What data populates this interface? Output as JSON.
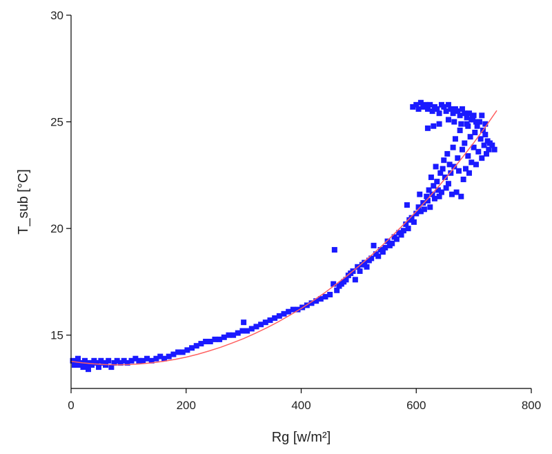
{
  "chart_data": {
    "type": "scatter",
    "title": "",
    "xlabel": "Rg [w/m²]",
    "ylabel": "T_sub [°C]",
    "xlim": [
      0,
      800
    ],
    "ylim": [
      12.5,
      30
    ],
    "xticks": [
      0,
      200,
      400,
      600,
      800
    ],
    "xtick_labels": [
      "0",
      "200",
      "400",
      "600",
      "800"
    ],
    "yticks": [
      15,
      20,
      25,
      30
    ],
    "ytick_labels": [
      "15",
      "20",
      "25",
      "30"
    ],
    "grid": false,
    "legend": "none",
    "series": [
      {
        "kind": "scatter",
        "color": "#1a1aff",
        "points": [
          [
            3,
            13.8
          ],
          [
            6,
            13.6
          ],
          [
            9,
            13.7
          ],
          [
            12,
            13.9
          ],
          [
            15,
            13.6
          ],
          [
            18,
            13.7
          ],
          [
            21,
            13.5
          ],
          [
            24,
            13.8
          ],
          [
            27,
            13.6
          ],
          [
            30,
            13.4
          ],
          [
            33,
            13.7
          ],
          [
            36,
            13.6
          ],
          [
            40,
            13.8
          ],
          [
            44,
            13.7
          ],
          [
            48,
            13.5
          ],
          [
            52,
            13.8
          ],
          [
            56,
            13.7
          ],
          [
            60,
            13.6
          ],
          [
            65,
            13.8
          ],
          [
            70,
            13.5
          ],
          [
            75,
            13.7
          ],
          [
            80,
            13.8
          ],
          [
            86,
            13.7
          ],
          [
            92,
            13.8
          ],
          [
            98,
            13.7
          ],
          [
            105,
            13.8
          ],
          [
            112,
            13.9
          ],
          [
            118,
            13.8
          ],
          [
            125,
            13.8
          ],
          [
            132,
            13.9
          ],
          [
            140,
            13.8
          ],
          [
            148,
            13.9
          ],
          [
            155,
            14.0
          ],
          [
            162,
            13.9
          ],
          [
            170,
            14.0
          ],
          [
            178,
            14.1
          ],
          [
            186,
            14.2
          ],
          [
            194,
            14.2
          ],
          [
            202,
            14.3
          ],
          [
            210,
            14.4
          ],
          [
            218,
            14.5
          ],
          [
            226,
            14.6
          ],
          [
            234,
            14.7
          ],
          [
            242,
            14.7
          ],
          [
            250,
            14.8
          ],
          [
            258,
            14.8
          ],
          [
            266,
            14.9
          ],
          [
            274,
            15.0
          ],
          [
            282,
            15.0
          ],
          [
            290,
            15.1
          ],
          [
            298,
            15.2
          ],
          [
            300,
            15.6
          ],
          [
            306,
            15.2
          ],
          [
            314,
            15.3
          ],
          [
            322,
            15.4
          ],
          [
            330,
            15.5
          ],
          [
            338,
            15.6
          ],
          [
            346,
            15.7
          ],
          [
            354,
            15.8
          ],
          [
            362,
            15.9
          ],
          [
            370,
            16.0
          ],
          [
            378,
            16.1
          ],
          [
            386,
            16.2
          ],
          [
            394,
            16.2
          ],
          [
            402,
            16.3
          ],
          [
            410,
            16.4
          ],
          [
            418,
            16.5
          ],
          [
            426,
            16.6
          ],
          [
            434,
            16.7
          ],
          [
            442,
            16.8
          ],
          [
            450,
            16.9
          ],
          [
            456,
            17.4
          ],
          [
            458,
            19.0
          ],
          [
            462,
            17.1
          ],
          [
            466,
            17.3
          ],
          [
            470,
            17.4
          ],
          [
            474,
            17.5
          ],
          [
            478,
            17.6
          ],
          [
            482,
            17.8
          ],
          [
            486,
            17.9
          ],
          [
            490,
            18.0
          ],
          [
            494,
            17.6
          ],
          [
            498,
            18.2
          ],
          [
            502,
            18.0
          ],
          [
            506,
            18.3
          ],
          [
            510,
            18.4
          ],
          [
            514,
            18.2
          ],
          [
            518,
            18.5
          ],
          [
            522,
            18.6
          ],
          [
            526,
            19.2
          ],
          [
            530,
            18.8
          ],
          [
            534,
            18.7
          ],
          [
            538,
            19.0
          ],
          [
            542,
            18.9
          ],
          [
            546,
            19.1
          ],
          [
            550,
            19.4
          ],
          [
            554,
            19.2
          ],
          [
            558,
            19.3
          ],
          [
            562,
            19.6
          ],
          [
            566,
            19.5
          ],
          [
            570,
            19.8
          ],
          [
            574,
            19.7
          ],
          [
            578,
            19.9
          ],
          [
            582,
            20.2
          ],
          [
            584,
            21.1
          ],
          [
            586,
            20.0
          ],
          [
            588,
            20.4
          ],
          [
            592,
            20.5
          ],
          [
            596,
            20.3
          ],
          [
            600,
            20.7
          ],
          [
            604,
            21.0
          ],
          [
            606,
            21.6
          ],
          [
            608,
            20.8
          ],
          [
            612,
            21.2
          ],
          [
            614,
            20.9
          ],
          [
            618,
            21.5
          ],
          [
            620,
            21.3
          ],
          [
            622,
            21.8
          ],
          [
            624,
            21.0
          ],
          [
            626,
            22.4
          ],
          [
            628,
            21.6
          ],
          [
            630,
            22.0
          ],
          [
            632,
            21.4
          ],
          [
            634,
            22.9
          ],
          [
            636,
            22.2
          ],
          [
            638,
            21.8
          ],
          [
            640,
            21.5
          ],
          [
            642,
            22.6
          ],
          [
            644,
            21.7
          ],
          [
            646,
            22.8
          ],
          [
            648,
            23.2
          ],
          [
            650,
            22.4
          ],
          [
            652,
            21.9
          ],
          [
            654,
            23.5
          ],
          [
            656,
            22.1
          ],
          [
            658,
            23.0
          ],
          [
            660,
            22.6
          ],
          [
            662,
            21.6
          ],
          [
            664,
            23.8
          ],
          [
            666,
            22.9
          ],
          [
            668,
            24.2
          ],
          [
            670,
            21.7
          ],
          [
            672,
            23.3
          ],
          [
            674,
            22.7
          ],
          [
            676,
            24.6
          ],
          [
            678,
            21.5
          ],
          [
            680,
            23.7
          ],
          [
            682,
            22.3
          ],
          [
            684,
            24.0
          ],
          [
            686,
            22.8
          ],
          [
            688,
            24.9
          ],
          [
            690,
            23.4
          ],
          [
            692,
            22.6
          ],
          [
            694,
            24.3
          ],
          [
            696,
            23.1
          ],
          [
            698,
            25.2
          ],
          [
            700,
            23.8
          ],
          [
            702,
            24.5
          ],
          [
            704,
            23.0
          ],
          [
            706,
            24.8
          ],
          [
            708,
            23.6
          ],
          [
            710,
            25.0
          ],
          [
            712,
            24.2
          ],
          [
            714,
            23.3
          ],
          [
            716,
            24.6
          ],
          [
            718,
            23.9
          ],
          [
            720,
            24.4
          ],
          [
            722,
            23.5
          ],
          [
            724,
            24.1
          ],
          [
            726,
            23.7
          ],
          [
            728,
            24.0
          ],
          [
            732,
            23.9
          ],
          [
            736,
            23.7
          ],
          [
            714,
            25.3
          ],
          [
            720,
            24.9
          ],
          [
            600,
            25.8
          ],
          [
            604,
            25.6
          ],
          [
            608,
            25.9
          ],
          [
            612,
            25.7
          ],
          [
            616,
            25.8
          ],
          [
            620,
            25.6
          ],
          [
            624,
            25.8
          ],
          [
            628,
            25.5
          ],
          [
            632,
            25.7
          ],
          [
            636,
            25.6
          ],
          [
            640,
            25.4
          ],
          [
            644,
            25.8
          ],
          [
            648,
            25.7
          ],
          [
            652,
            25.5
          ],
          [
            656,
            25.8
          ],
          [
            660,
            25.6
          ],
          [
            664,
            25.4
          ],
          [
            668,
            25.6
          ],
          [
            672,
            25.5
          ],
          [
            676,
            25.3
          ],
          [
            680,
            25.6
          ],
          [
            684,
            25.4
          ],
          [
            688,
            25.2
          ],
          [
            692,
            25.4
          ],
          [
            696,
            25.1
          ],
          [
            700,
            25.3
          ],
          [
            704,
            25.0
          ],
          [
            620,
            24.7
          ],
          [
            630,
            24.8
          ],
          [
            640,
            24.9
          ],
          [
            656,
            25.1
          ],
          [
            666,
            25.0
          ],
          [
            678,
            24.9
          ],
          [
            690,
            24.8
          ],
          [
            594,
            25.7
          ]
        ]
      },
      {
        "kind": "fit-line",
        "color": "#ff6060",
        "x": [
          0,
          20,
          40,
          60,
          80,
          100,
          120,
          140,
          160,
          180,
          200,
          220,
          240,
          260,
          280,
          300,
          320,
          340,
          360,
          380,
          400,
          420,
          440,
          460,
          480,
          500,
          520,
          540,
          560,
          580,
          600,
          620,
          640,
          660,
          680,
          700,
          720,
          740
        ],
        "y": [
          13.77,
          13.7,
          13.65,
          13.62,
          13.61,
          13.62,
          13.65,
          13.7,
          13.77,
          13.86,
          13.97,
          14.1,
          14.26,
          14.43,
          14.63,
          14.84,
          15.08,
          15.34,
          15.62,
          15.93,
          16.25,
          16.6,
          16.97,
          17.37,
          17.79,
          18.23,
          18.69,
          19.18,
          19.7,
          20.24,
          20.8,
          21.39,
          22.01,
          22.65,
          23.32,
          24.02,
          24.75,
          25.53
        ]
      }
    ]
  }
}
